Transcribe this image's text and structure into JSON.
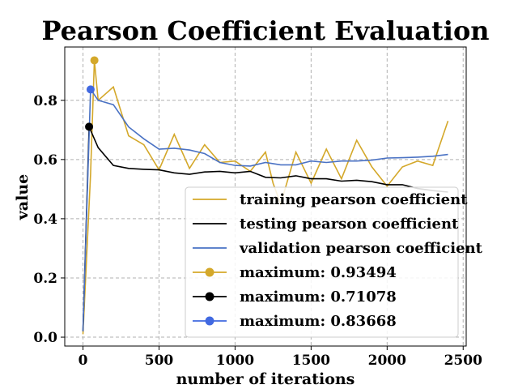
{
  "chart_data": {
    "type": "line",
    "title": "Pearson Coefficient Evaluation",
    "xlabel": "number of iterations",
    "ylabel": "value",
    "xlim": [
      -120,
      2520
    ],
    "ylim": [
      -0.03,
      0.98
    ],
    "xticks": [
      0,
      500,
      1000,
      1500,
      2000,
      2500
    ],
    "yticks": [
      0.0,
      0.2,
      0.4,
      0.6,
      0.8
    ],
    "ytick_labels": [
      "0.0",
      "0.2",
      "0.4",
      "0.6",
      "0.8"
    ],
    "grid": true,
    "legend_position": "lower-right",
    "series": [
      {
        "name": "training pearson coefficient",
        "color": "#d4a82a",
        "x": [
          0,
          50,
          75,
          100,
          200,
          300,
          400,
          500,
          600,
          700,
          800,
          900,
          1000,
          1100,
          1200,
          1250,
          1300,
          1400,
          1500,
          1600,
          1700,
          1800,
          1900,
          2000,
          2100,
          2200,
          2300,
          2400
        ],
        "y": [
          0.01,
          0.55,
          0.935,
          0.8,
          0.845,
          0.68,
          0.65,
          0.565,
          0.685,
          0.57,
          0.65,
          0.59,
          0.595,
          0.56,
          0.625,
          0.52,
          0.45,
          0.625,
          0.52,
          0.635,
          0.535,
          0.665,
          0.575,
          0.51,
          0.575,
          0.595,
          0.58,
          0.73
        ]
      },
      {
        "name": "testing pearson coefficient",
        "color": "#000000",
        "x": [
          0,
          40,
          100,
          200,
          300,
          400,
          500,
          600,
          700,
          800,
          900,
          1000,
          1100,
          1200,
          1300,
          1400,
          1500,
          1600,
          1700,
          1800,
          1900,
          2000,
          2100,
          2200,
          2300,
          2400
        ],
        "y": [
          0.02,
          0.71,
          0.64,
          0.58,
          0.57,
          0.567,
          0.565,
          0.555,
          0.55,
          0.558,
          0.56,
          0.555,
          0.56,
          0.54,
          0.538,
          0.545,
          0.535,
          0.535,
          0.527,
          0.53,
          0.525,
          0.515,
          0.515,
          0.502,
          0.495,
          0.49
        ]
      },
      {
        "name": "validation pearson coefficient",
        "color": "#4a72c4",
        "x": [
          0,
          50,
          100,
          200,
          300,
          400,
          500,
          600,
          700,
          800,
          900,
          1000,
          1100,
          1200,
          1300,
          1400,
          1500,
          1600,
          1700,
          1800,
          1900,
          2000,
          2100,
          2200,
          2300,
          2400
        ],
        "y": [
          0.02,
          0.837,
          0.8,
          0.785,
          0.71,
          0.67,
          0.635,
          0.638,
          0.632,
          0.62,
          0.59,
          0.58,
          0.578,
          0.59,
          0.582,
          0.582,
          0.595,
          0.59,
          0.595,
          0.595,
          0.598,
          0.605,
          0.606,
          0.608,
          0.611,
          0.617
        ]
      }
    ],
    "maxima": [
      {
        "name": "maximum: 0.93494",
        "color": "#d4a82a",
        "x": 75,
        "y": 0.93494
      },
      {
        "name": "maximum: 0.71078",
        "color": "#000000",
        "x": 40,
        "y": 0.71078
      },
      {
        "name": "maximum: 0.83668",
        "color": "#4169e1",
        "x": 50,
        "y": 0.83668
      }
    ]
  }
}
